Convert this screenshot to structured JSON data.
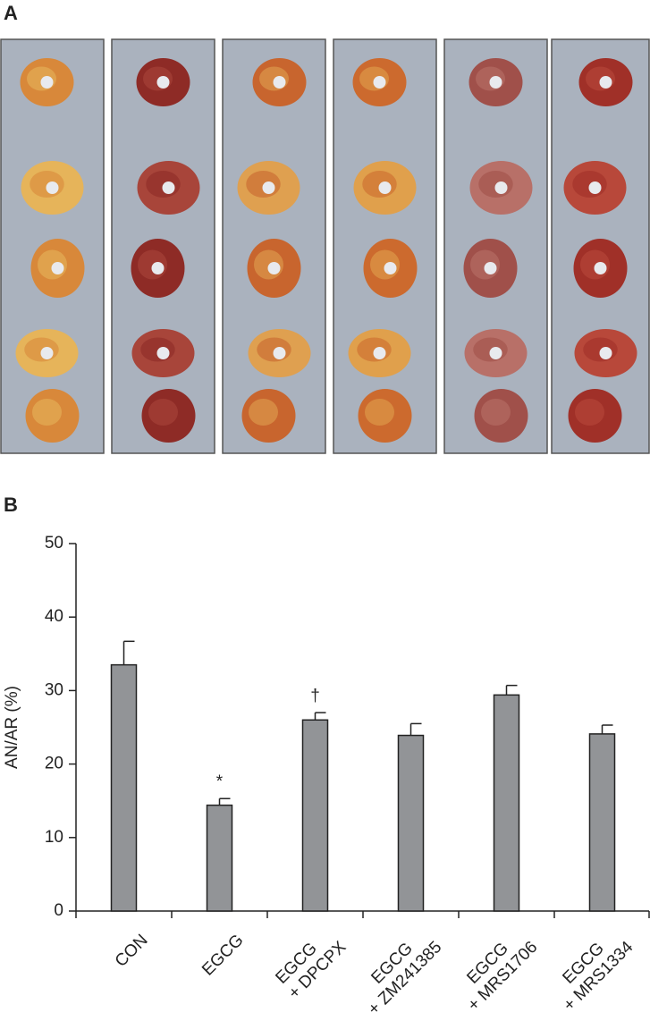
{
  "panels": {
    "a": "A",
    "b": "B"
  },
  "chart_data": {
    "type": "bar",
    "ylabel": "AN/AR (%)",
    "categories": [
      [
        "CON"
      ],
      [
        "EGCG"
      ],
      [
        "EGCG",
        "+ DPCPX"
      ],
      [
        "EGCG",
        "+ ZM241385"
      ],
      [
        "EGCG",
        "+ MRS1706"
      ],
      [
        "EGCG",
        "+ MRS1334"
      ]
    ],
    "values": [
      33.5,
      14.4,
      26.0,
      23.9,
      29.4,
      24.1
    ],
    "errors": [
      3.2,
      0.9,
      1.0,
      1.6,
      1.3,
      1.2
    ],
    "annotations": [
      null,
      "*",
      "†",
      null,
      null,
      null
    ],
    "color": "#929497",
    "ylim": [
      0,
      50
    ],
    "yticks": [
      0,
      10,
      20,
      30,
      40,
      50
    ],
    "grid": false
  }
}
